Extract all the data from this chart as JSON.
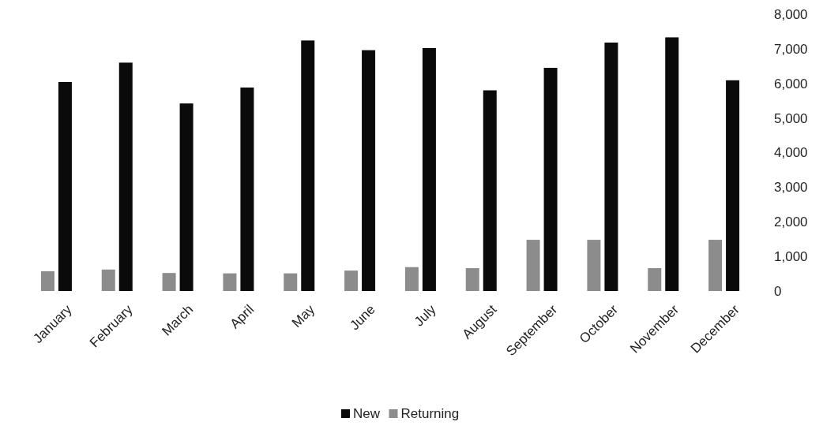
{
  "chart_data": {
    "type": "bar",
    "categories": [
      "January",
      "February",
      "March",
      "April",
      "May",
      "June",
      "July",
      "August",
      "September",
      "October",
      "November",
      "December"
    ],
    "series": [
      {
        "name": "New",
        "color": "#0a0a0a",
        "values": [
          6040,
          6600,
          5420,
          5880,
          7240,
          6960,
          7020,
          5800,
          6450,
          7180,
          7330,
          6090
        ]
      },
      {
        "name": "Returning",
        "color": "#8c8c8c",
        "values": [
          570,
          620,
          520,
          510,
          510,
          590,
          690,
          660,
          1480,
          1480,
          660,
          1480
        ]
      }
    ],
    "ylim": [
      0,
      8000
    ],
    "yticks": [
      0,
      {
        "value": 1000,
        "label": "1,000"
      },
      {
        "value": 2000,
        "label": "2,000"
      },
      {
        "value": 3000,
        "label": "3,000"
      },
      {
        "value": 4000,
        "label": "4,000"
      },
      {
        "value": 5000,
        "label": "5,000"
      },
      {
        "value": 6000,
        "label": "6,000"
      },
      {
        "value": 7000,
        "label": "7,000"
      },
      {
        "value": 8000,
        "label": "8,000"
      }
    ],
    "grid": false,
    "legend": "bottom"
  }
}
